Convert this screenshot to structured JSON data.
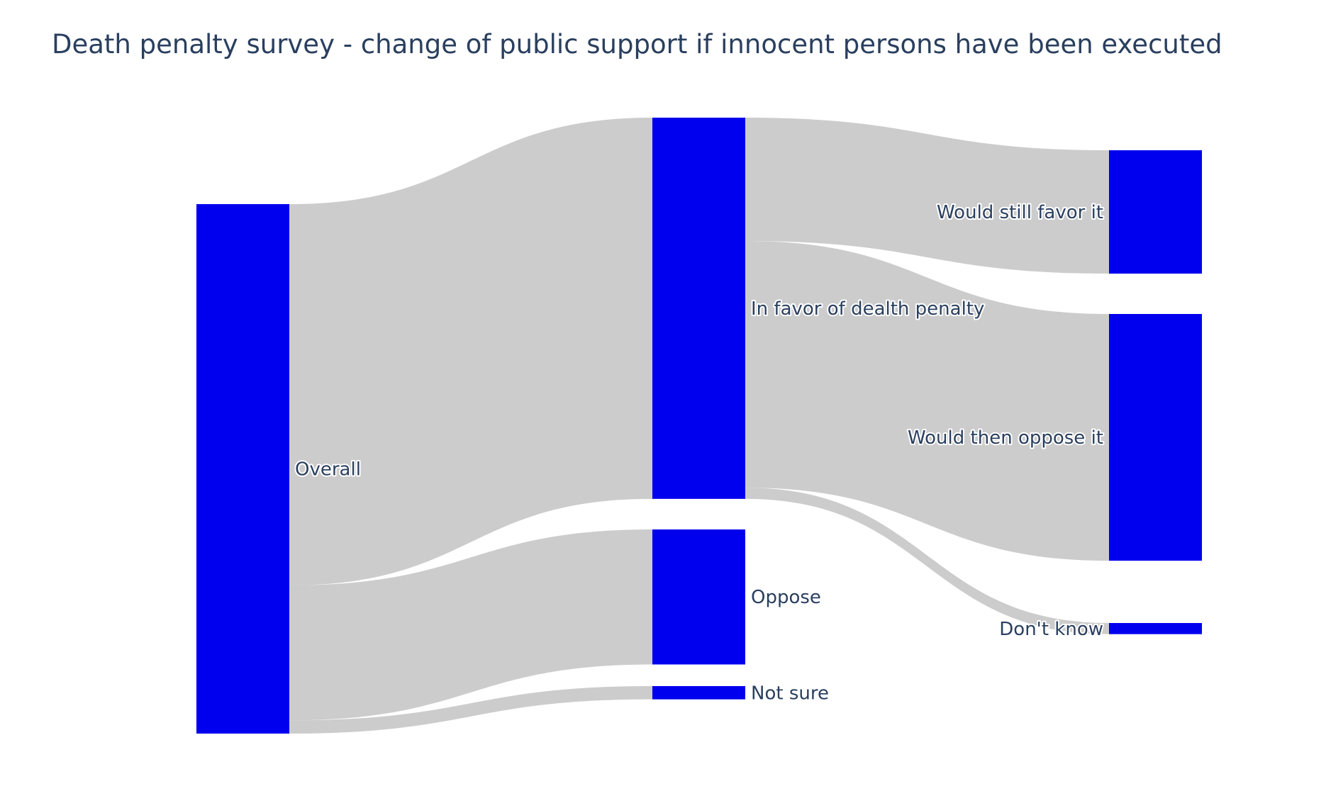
{
  "chart_data": {
    "type": "sankey",
    "title": "Death penalty survey - change of public support if innocent persons have been executed",
    "node_color": "#0000ee",
    "link_color": "#cccccc",
    "nodes": [
      {
        "id": "overall",
        "label": "Overall",
        "column": 0
      },
      {
        "id": "favor",
        "label": "In favor of dealth penalty",
        "column": 1
      },
      {
        "id": "oppose",
        "label": "Oppose",
        "column": 1
      },
      {
        "id": "notsure",
        "label": "Not sure",
        "column": 1
      },
      {
        "id": "still",
        "label": "Would still favor it",
        "column": 2
      },
      {
        "id": "then",
        "label": "Would then oppose it",
        "column": 2
      },
      {
        "id": "dontknow",
        "label": "Don't know",
        "column": 2
      }
    ],
    "links": [
      {
        "source": "overall",
        "target": "favor",
        "value": 72
      },
      {
        "source": "overall",
        "target": "oppose",
        "value": 25.5
      },
      {
        "source": "overall",
        "target": "notsure",
        "value": 2.5
      },
      {
        "source": "favor",
        "target": "still",
        "value": 23.3
      },
      {
        "source": "favor",
        "target": "then",
        "value": 46.6
      },
      {
        "source": "favor",
        "target": "dontknow",
        "value": 2.1
      }
    ]
  }
}
